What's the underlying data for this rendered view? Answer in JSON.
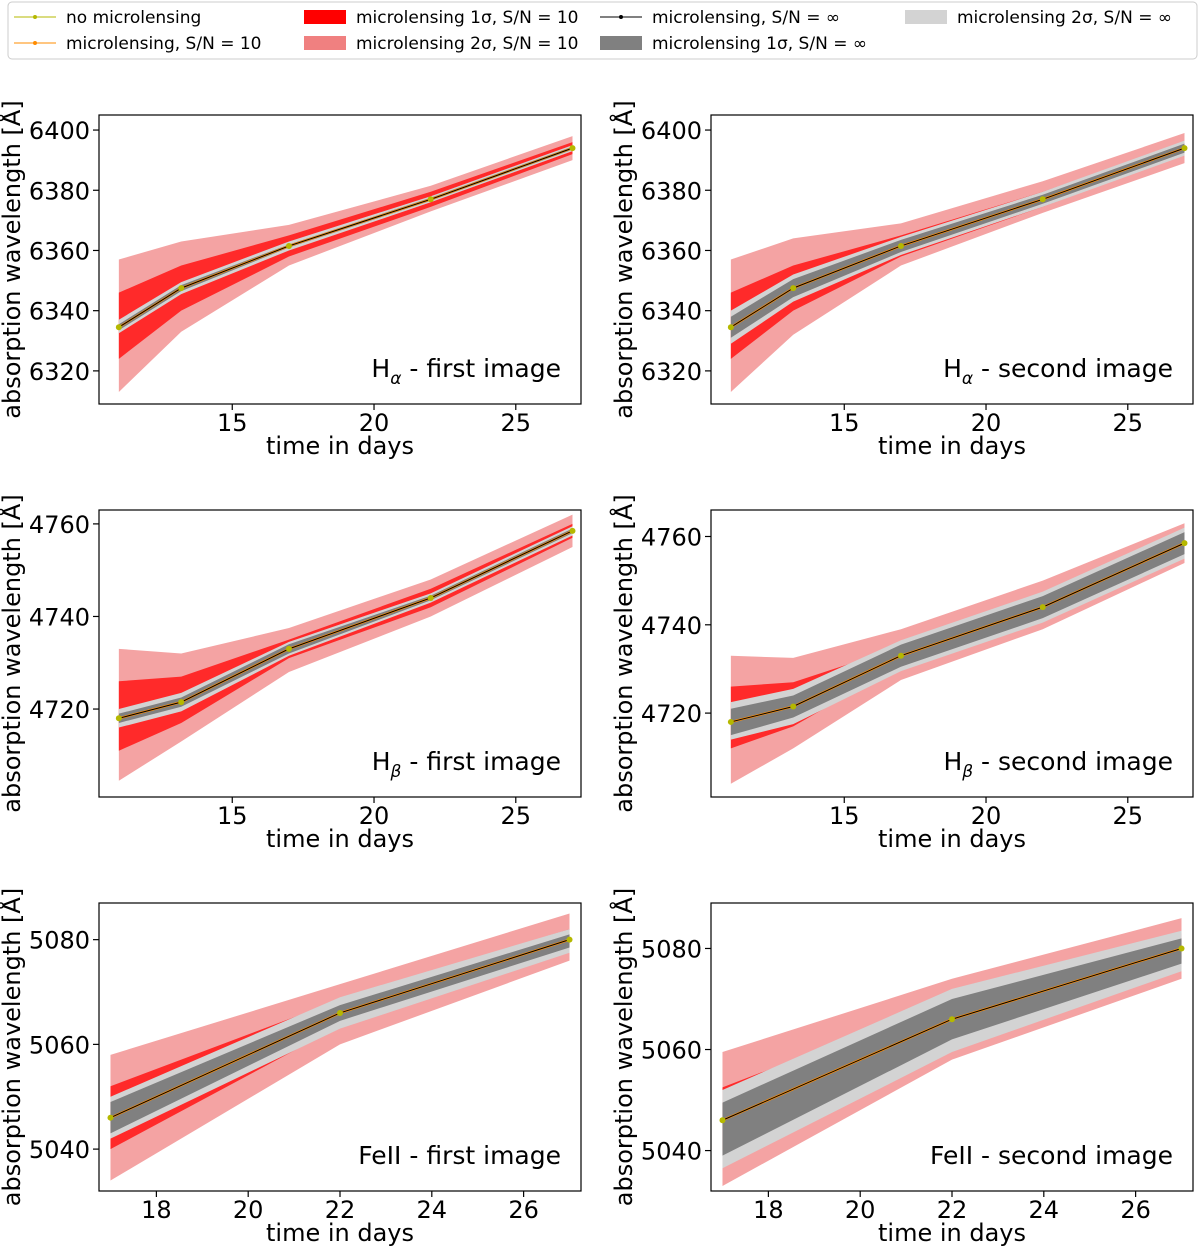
{
  "legend": {
    "placement": "top",
    "entries": [
      {
        "label": "no microlensing",
        "kind": "line",
        "color": "#b5b800"
      },
      {
        "label": "microlensing, S/N = 10",
        "kind": "line",
        "color": "#ff8c00"
      },
      {
        "label": "microlensing 1σ, S/N = 10",
        "kind": "patch",
        "color": "#ff0000"
      },
      {
        "label": "microlensing 2σ, S/N = 10",
        "kind": "patch",
        "color": "#f08080"
      },
      {
        "label": "microlensing, S/N = ∞",
        "kind": "line",
        "color": "#000000"
      },
      {
        "label": "microlensing 1σ, S/N = ∞",
        "kind": "patch",
        "color": "#808080"
      },
      {
        "label": "microlensing 2σ, S/N = ∞",
        "kind": "patch",
        "color": "#d3d3d3"
      }
    ]
  },
  "colors": {
    "no_microlensing": "#b5b800",
    "sn10_line": "#ff8c00",
    "sn10_1sigma": "#ff2a2a",
    "sn10_2sigma": "#f4a3a3",
    "inf_line": "#000000",
    "inf_1sigma": "#808080",
    "inf_2sigma": "#d3d3d3"
  },
  "chart_data": [
    {
      "type": "area",
      "annotation": "H",
      "annotation_sub": "α",
      "annotation_rest": " - first image",
      "xlabel": "time in days",
      "ylabel": "absorption wavelength [Å]",
      "xlim": [
        10.3,
        27.3
      ],
      "ylim": [
        6309,
        6405
      ],
      "xticks": [
        15,
        20,
        25
      ],
      "yticks": [
        6320,
        6340,
        6360,
        6380,
        6400
      ],
      "grid": false,
      "x": [
        11,
        13.2,
        17,
        22,
        27
      ],
      "no_microlensing": [
        6334.5,
        6347.5,
        6361.5,
        6377,
        6394
      ],
      "sn10_1sigma_low": [
        6324,
        6340,
        6358,
        6374.5,
        6392
      ],
      "sn10_1sigma_high": [
        6346,
        6355,
        6365,
        6379.5,
        6396
      ],
      "sn10_2sigma_low": [
        6313,
        6333,
        6355,
        6373,
        6390
      ],
      "sn10_2sigma_high": [
        6357,
        6363,
        6368.5,
        6381.5,
        6398
      ],
      "inf_1sigma_low": [
        6333.5,
        6346.5,
        6361,
        6376.5,
        6393.5
      ],
      "inf_1sigma_high": [
        6335.5,
        6348.5,
        6362,
        6377.5,
        6394.5
      ],
      "inf_2sigma_low": [
        6332.5,
        6345.5,
        6360,
        6376,
        6393
      ],
      "inf_2sigma_high": [
        6337,
        6349.5,
        6363,
        6378,
        6395
      ]
    },
    {
      "type": "area",
      "annotation": "H",
      "annotation_sub": "α",
      "annotation_rest": " - second image",
      "xlabel": "time in days",
      "ylabel": "absorption wavelength [Å]",
      "xlim": [
        10.3,
        27.3
      ],
      "ylim": [
        6309,
        6405
      ],
      "xticks": [
        15,
        20,
        25
      ],
      "yticks": [
        6320,
        6340,
        6360,
        6380,
        6400
      ],
      "grid": false,
      "x": [
        11,
        13.2,
        17,
        22,
        27
      ],
      "no_microlensing": [
        6334.5,
        6347.5,
        6361.5,
        6377,
        6394
      ],
      "sn10_1sigma_low": [
        6324,
        6340,
        6358,
        6374.5,
        6392
      ],
      "sn10_1sigma_high": [
        6346,
        6355,
        6365,
        6379.5,
        6396
      ],
      "sn10_2sigma_low": [
        6313,
        6332,
        6355,
        6372.5,
        6389
      ],
      "sn10_2sigma_high": [
        6357,
        6364,
        6369,
        6383,
        6399
      ],
      "inf_1sigma_low": [
        6331,
        6344.5,
        6359.5,
        6375.5,
        6392.5
      ],
      "inf_1sigma_high": [
        6338,
        6350.5,
        6363.5,
        6378.5,
        6395.5
      ],
      "inf_2sigma_low": [
        6329,
        6343,
        6358.5,
        6374.5,
        6391.5
      ],
      "inf_2sigma_high": [
        6340,
        6352,
        6364.5,
        6379.5,
        6396.5
      ]
    },
    {
      "type": "area",
      "annotation": "H",
      "annotation_sub": "β",
      "annotation_rest": " - first image",
      "xlabel": "time in days",
      "ylabel": "absorption wavelength [Å]",
      "xlim": [
        10.3,
        27.3
      ],
      "ylim": [
        4701,
        4763
      ],
      "xticks": [
        15,
        20,
        25
      ],
      "yticks": [
        4720,
        4740,
        4760
      ],
      "grid": false,
      "x": [
        11,
        13.2,
        17,
        22,
        27
      ],
      "no_microlensing": [
        4718,
        4721.5,
        4733,
        4744,
        4758.5
      ],
      "sn10_1sigma_low": [
        4711,
        4717,
        4731,
        4742,
        4757
      ],
      "sn10_1sigma_high": [
        4726,
        4727,
        4735,
        4746,
        4760
      ],
      "sn10_2sigma_low": [
        4704.5,
        4713,
        4728,
        4740,
        4755
      ],
      "sn10_2sigma_high": [
        4733,
        4732,
        4737.5,
        4748,
        4762
      ],
      "inf_1sigma_low": [
        4717,
        4720.5,
        4732,
        4743.5,
        4758
      ],
      "inf_1sigma_high": [
        4719,
        4722.5,
        4734,
        4744.5,
        4759
      ],
      "inf_2sigma_low": [
        4716,
        4719.5,
        4731.5,
        4743,
        4757.5
      ],
      "inf_2sigma_high": [
        4720,
        4723.5,
        4734.5,
        4745,
        4759.5
      ]
    },
    {
      "type": "area",
      "annotation": "H",
      "annotation_sub": "β",
      "annotation_rest": " - second image",
      "xlabel": "time in days",
      "ylabel": "absorption wavelength [Å]",
      "xlim": [
        10.3,
        27.3
      ],
      "ylim": [
        4701,
        4766
      ],
      "xticks": [
        15,
        20,
        25
      ],
      "yticks": [
        4720,
        4740,
        4760
      ],
      "grid": false,
      "x": [
        11,
        13.2,
        17,
        22,
        27
      ],
      "no_microlensing": [
        4718,
        4721.5,
        4733,
        4744,
        4758.5
      ],
      "sn10_1sigma_low": [
        4712,
        4717,
        4731,
        4742,
        4757
      ],
      "sn10_1sigma_high": [
        4726,
        4727,
        4735,
        4746,
        4760
      ],
      "sn10_2sigma_low": [
        4704,
        4712,
        4727.5,
        4739,
        4754
      ],
      "sn10_2sigma_high": [
        4733,
        4732.5,
        4739,
        4750,
        4763
      ],
      "inf_1sigma_low": [
        4715,
        4719,
        4730.5,
        4741.5,
        4756
      ],
      "inf_1sigma_high": [
        4721,
        4724,
        4735.5,
        4746.5,
        4761
      ],
      "inf_2sigma_low": [
        4714,
        4717.5,
        4729.5,
        4740.5,
        4755
      ],
      "inf_2sigma_high": [
        4722.5,
        4725.5,
        4736.5,
        4747.5,
        4762
      ]
    },
    {
      "type": "area",
      "annotation": "FeII - first image",
      "annotation_sub": "",
      "annotation_rest": "",
      "xlabel": "time in days",
      "ylabel": "absorption wavelength [Å]",
      "xlim": [
        16.75,
        27.25
      ],
      "ylim": [
        5032,
        5087
      ],
      "xticks": [
        18,
        20,
        22,
        24,
        26
      ],
      "yticks": [
        5040,
        5060,
        5080
      ],
      "grid": false,
      "x": [
        17,
        22,
        27
      ],
      "no_microlensing": [
        5046,
        5066,
        5080
      ],
      "sn10_1sigma_low": [
        5040,
        5063.5,
        5079
      ],
      "sn10_1sigma_high": [
        5052,
        5068.5,
        5082
      ],
      "sn10_2sigma_low": [
        5034,
        5060,
        5076
      ],
      "sn10_2sigma_high": [
        5058,
        5071.5,
        5085
      ],
      "inf_1sigma_low": [
        5043,
        5064.5,
        5078.5
      ],
      "inf_1sigma_high": [
        5049,
        5067.5,
        5081
      ],
      "inf_2sigma_low": [
        5042,
        5063,
        5077.5
      ],
      "inf_2sigma_high": [
        5050,
        5069,
        5082
      ]
    },
    {
      "type": "area",
      "annotation": "FeII - second image",
      "annotation_sub": "",
      "annotation_rest": "",
      "xlabel": "time in days",
      "ylabel": "absorption wavelength [Å]",
      "xlim": [
        16.75,
        27.25
      ],
      "ylim": [
        5032,
        5089
      ],
      "xticks": [
        18,
        20,
        22,
        24,
        26
      ],
      "yticks": [
        5040,
        5060,
        5080
      ],
      "grid": false,
      "x": [
        17,
        22,
        27
      ],
      "no_microlensing": [
        5046,
        5066,
        5080
      ],
      "sn10_1sigma_low": [
        5040,
        5062,
        5078
      ],
      "sn10_1sigma_high": [
        5052.5,
        5070,
        5083
      ],
      "sn10_2sigma_low": [
        5033,
        5058,
        5074
      ],
      "sn10_2sigma_high": [
        5059.5,
        5074,
        5086
      ],
      "inf_1sigma_low": [
        5039,
        5062,
        5077
      ],
      "inf_1sigma_high": [
        5049.5,
        5070,
        5082
      ],
      "inf_2sigma_low": [
        5036.5,
        5059.5,
        5075.5
      ],
      "inf_2sigma_high": [
        5052,
        5072,
        5083.5
      ]
    }
  ]
}
